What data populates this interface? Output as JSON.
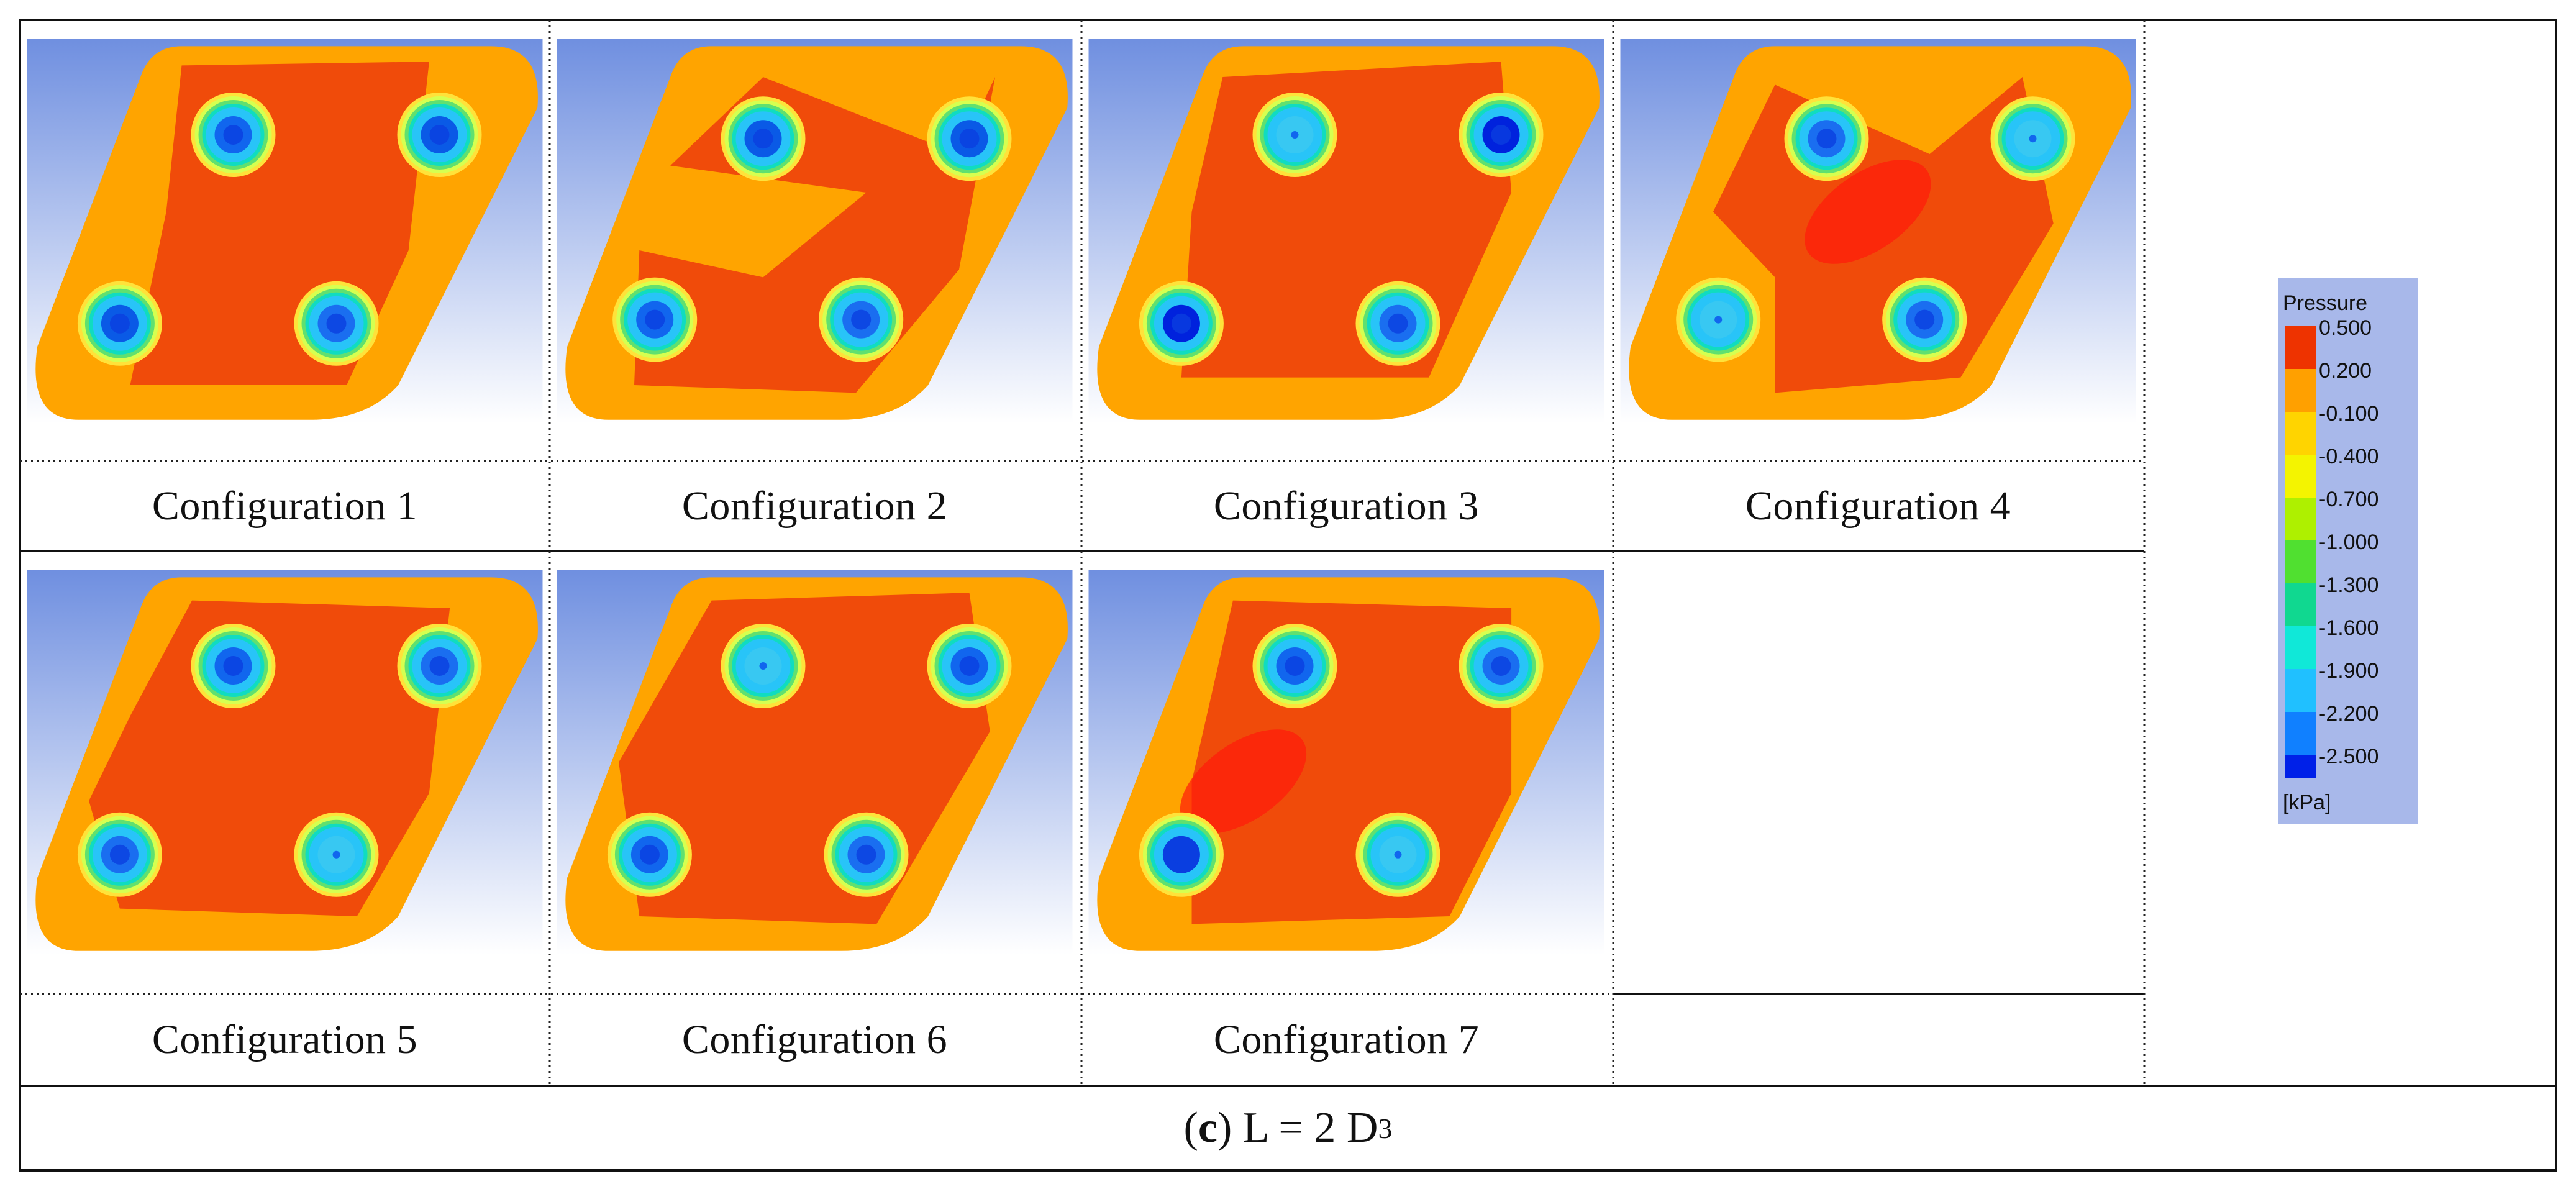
{
  "figure": {
    "panels": [
      {
        "label": "Configuration 1",
        "vortex_cores": [
          "#1166ee",
          "#0a5ae6",
          "#0a5ae6",
          "#1a6ef0"
        ]
      },
      {
        "label": "Configuration 2",
        "vortex_cores": [
          "#0a5ae6",
          "#0a5ae6",
          "#1166ee",
          "#1a6ef0"
        ]
      },
      {
        "label": "Configuration 3",
        "vortex_cores": [
          "#38c8f2",
          "#0022dd",
          "#0022dd",
          "#1a6ef0"
        ]
      },
      {
        "label": "Configuration 4",
        "vortex_cores": [
          "#1a6ef0",
          "#38c8f2",
          "#38c8f2",
          "#1a6ef0"
        ]
      },
      {
        "label": "Configuration 5",
        "vortex_cores": [
          "#1166ee",
          "#1a6ef0",
          "#1a6ef0",
          "#38c8f2"
        ]
      },
      {
        "label": "Configuration 6",
        "vortex_cores": [
          "#38c8f2",
          "#1166ee",
          "#1166ee",
          "#1a6ef0"
        ]
      },
      {
        "label": "Configuration 7",
        "vortex_cores": [
          "#1166ee",
          "#1a6ef0",
          "#0a3ee0",
          "#38c8f2"
        ]
      }
    ],
    "caption": {
      "letter": "c",
      "rest": "L = 2 D",
      "subscript": "3"
    }
  },
  "legend": {
    "title": "Pressure",
    "unit": "[kPa]",
    "levels": [
      "0.500",
      "0.200",
      "-0.100",
      "-0.400",
      "-0.700",
      "-1.000",
      "-1.300",
      "-1.600",
      "-1.900",
      "-2.200",
      "-2.500"
    ],
    "colors": [
      "#ee3300",
      "#ffa000",
      "#ffd400",
      "#f4f400",
      "#aef000",
      "#50e030",
      "#10d890",
      "#10e8d8",
      "#20c0ff",
      "#1080ff",
      "#0020e8"
    ]
  },
  "colors": {
    "background_top": "#6f8fe0",
    "background_bottom": "#ffffff",
    "outer_flow": "#ffa400",
    "inner_flow": "#f04b0a",
    "legend_panel": "#a8b8ea"
  }
}
